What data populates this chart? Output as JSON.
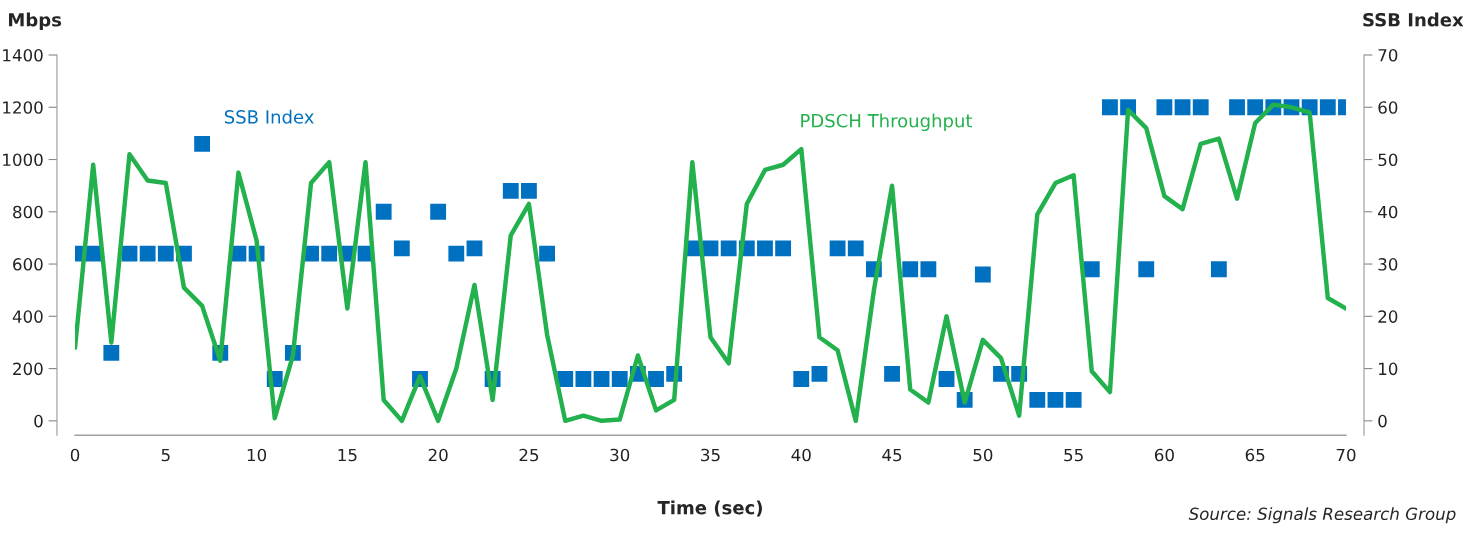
{
  "chart_data": {
    "type": "line",
    "xlabel": "Time (sec)",
    "ylabel": "Mbps",
    "y2label": "SSB Index",
    "x": [
      0,
      1,
      2,
      3,
      4,
      5,
      6,
      7,
      8,
      9,
      10,
      11,
      12,
      13,
      14,
      15,
      16,
      17,
      18,
      19,
      20,
      21,
      22,
      23,
      24,
      25,
      26,
      27,
      28,
      29,
      30,
      31,
      32,
      33,
      34,
      35,
      36,
      37,
      38,
      39,
      40,
      41,
      42,
      43,
      44,
      45,
      46,
      47,
      48,
      49,
      50,
      51,
      52,
      53,
      54,
      55,
      56,
      57,
      58,
      59,
      60,
      61,
      62,
      63,
      64,
      65,
      66,
      67,
      68,
      69,
      70
    ],
    "series": [
      {
        "name": "PDSCH Throughput",
        "color": "#22b14c",
        "line_style": "solid",
        "values": [
          280,
          980,
          300,
          1020,
          920,
          910,
          510,
          440,
          230,
          950,
          690,
          10,
          250,
          910,
          990,
          430,
          990,
          80,
          0,
          170,
          0,
          200,
          520,
          80,
          710,
          830,
          330,
          0,
          20,
          0,
          5,
          250,
          40,
          80,
          990,
          320,
          220,
          830,
          960,
          980,
          1040,
          320,
          270,
          0,
          500,
          900,
          120,
          70,
          400,
          70,
          310,
          240,
          20,
          790,
          910,
          940,
          190,
          110,
          1190,
          1120,
          860,
          810,
          1060,
          1080,
          850,
          1140,
          1210,
          1200,
          1180,
          470,
          430
        ]
      },
      {
        "name": "SSB Index",
        "type": "scatter",
        "axis": "y2",
        "marker": "square",
        "color": "#0070c0",
        "values": [
          32,
          32,
          13,
          32,
          32,
          32,
          32,
          53,
          13,
          32,
          32,
          8,
          13,
          32,
          32,
          32,
          32,
          40,
          33,
          8,
          40,
          32,
          33,
          8,
          44,
          44,
          32,
          8,
          8,
          8,
          8,
          9,
          8,
          9,
          33,
          33,
          33,
          33,
          33,
          33,
          8,
          9,
          33,
          33,
          29,
          9,
          29,
          29,
          8,
          4,
          28,
          9,
          9,
          4,
          4,
          4,
          29,
          60,
          60,
          29,
          60,
          60,
          60,
          29,
          60,
          60,
          60,
          60,
          60,
          60,
          60
        ]
      }
    ],
    "xlim": [
      0,
      70
    ],
    "xticks": [
      0,
      5,
      10,
      15,
      20,
      25,
      30,
      35,
      40,
      45,
      50,
      55,
      60,
      65,
      70
    ],
    "ylim": [
      -55,
      1400
    ],
    "yticks": [
      0,
      200,
      400,
      600,
      800,
      1000,
      1200,
      1400
    ],
    "y2lim": [
      -2.75,
      70
    ],
    "y2ticks": [
      0,
      10,
      20,
      30,
      40,
      50,
      60,
      70
    ],
    "grid": false,
    "legend": false,
    "annotations": [
      "Source: Signals Research Group"
    ]
  }
}
